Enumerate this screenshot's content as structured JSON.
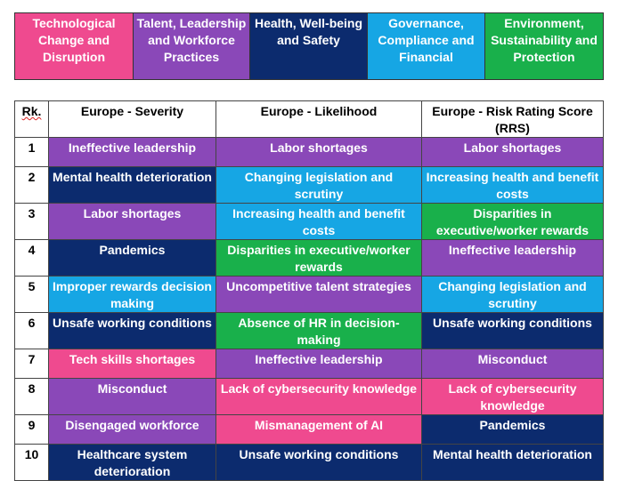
{
  "colors": {
    "tech": "#ef4a8f",
    "talent": "#8a48b8",
    "health": "#0c2b6e",
    "governance": "#16a6e4",
    "environment": "#19b04b"
  },
  "legend": [
    {
      "text": "Technological Change and Disruption",
      "color": "#ef4a8f"
    },
    {
      "text": "Talent, Leadership and Workforce Practices",
      "color": "#8a48b8"
    },
    {
      "text": "Health, Well-being and Safety",
      "color": "#0c2b6e"
    },
    {
      "text": "Governance, Compliance and Financial",
      "color": "#16a6e4"
    },
    {
      "text": "Environment, Sustainability and Protection",
      "color": "#19b04b"
    }
  ],
  "table": {
    "headers": {
      "rank": "Rk.",
      "severity": "Europe - Severity",
      "likelihood": "Europe - Likelihood",
      "rrs": "Europe - Risk Rating Score (RRS)"
    },
    "rows": [
      {
        "rank": "1",
        "severity": {
          "text": "Ineffective leadership",
          "cat": "talent"
        },
        "likelihood": {
          "text": "Labor shortages",
          "cat": "talent"
        },
        "rrs": {
          "text": "Labor shortages",
          "cat": "talent"
        }
      },
      {
        "rank": "2",
        "severity": {
          "text": "Mental health deterioration",
          "cat": "health"
        },
        "likelihood": {
          "text": "Changing legislation and scrutiny",
          "cat": "governance"
        },
        "rrs": {
          "text": "Increasing health and benefit costs",
          "cat": "governance"
        }
      },
      {
        "rank": "3",
        "severity": {
          "text": "Labor shortages",
          "cat": "talent"
        },
        "likelihood": {
          "text": "Increasing health and benefit costs",
          "cat": "governance"
        },
        "rrs": {
          "text": "Disparities in executive/worker rewards",
          "cat": "environment"
        }
      },
      {
        "rank": "4",
        "severity": {
          "text": "Pandemics",
          "cat": "health"
        },
        "likelihood": {
          "text": "Disparities in executive/worker rewards",
          "cat": "environment"
        },
        "rrs": {
          "text": "Ineffective leadership",
          "cat": "talent"
        }
      },
      {
        "rank": "5",
        "severity": {
          "text": "Improper rewards decision making",
          "cat": "governance"
        },
        "likelihood": {
          "text": "Uncompetitive talent strategies",
          "cat": "talent"
        },
        "rrs": {
          "text": "Changing legislation and scrutiny",
          "cat": "governance"
        }
      },
      {
        "rank": "6",
        "severity": {
          "text": "Unsafe working conditions",
          "cat": "health"
        },
        "likelihood": {
          "text": "Absence of HR in decision-making",
          "cat": "environment"
        },
        "rrs": {
          "text": "Unsafe working conditions",
          "cat": "health"
        }
      },
      {
        "rank": "7",
        "severity": {
          "text": "Tech skills shortages",
          "cat": "tech"
        },
        "likelihood": {
          "text": "Ineffective leadership",
          "cat": "talent"
        },
        "rrs": {
          "text": "Misconduct",
          "cat": "talent"
        }
      },
      {
        "rank": "8",
        "severity": {
          "text": "Misconduct",
          "cat": "talent"
        },
        "likelihood": {
          "text": "Lack of cybersecurity knowledge",
          "cat": "tech"
        },
        "rrs": {
          "text": "Lack of cybersecurity knowledge",
          "cat": "tech"
        }
      },
      {
        "rank": "9",
        "severity": {
          "text": "Disengaged workforce",
          "cat": "talent"
        },
        "likelihood": {
          "text": "Mismanagement of AI",
          "cat": "tech"
        },
        "rrs": {
          "text": "Pandemics",
          "cat": "health"
        }
      },
      {
        "rank": "10",
        "severity": {
          "text": "Healthcare system deterioration",
          "cat": "health"
        },
        "likelihood": {
          "text": "Unsafe working conditions",
          "cat": "health"
        },
        "rrs": {
          "text": "Mental health deterioration",
          "cat": "health"
        }
      }
    ]
  }
}
